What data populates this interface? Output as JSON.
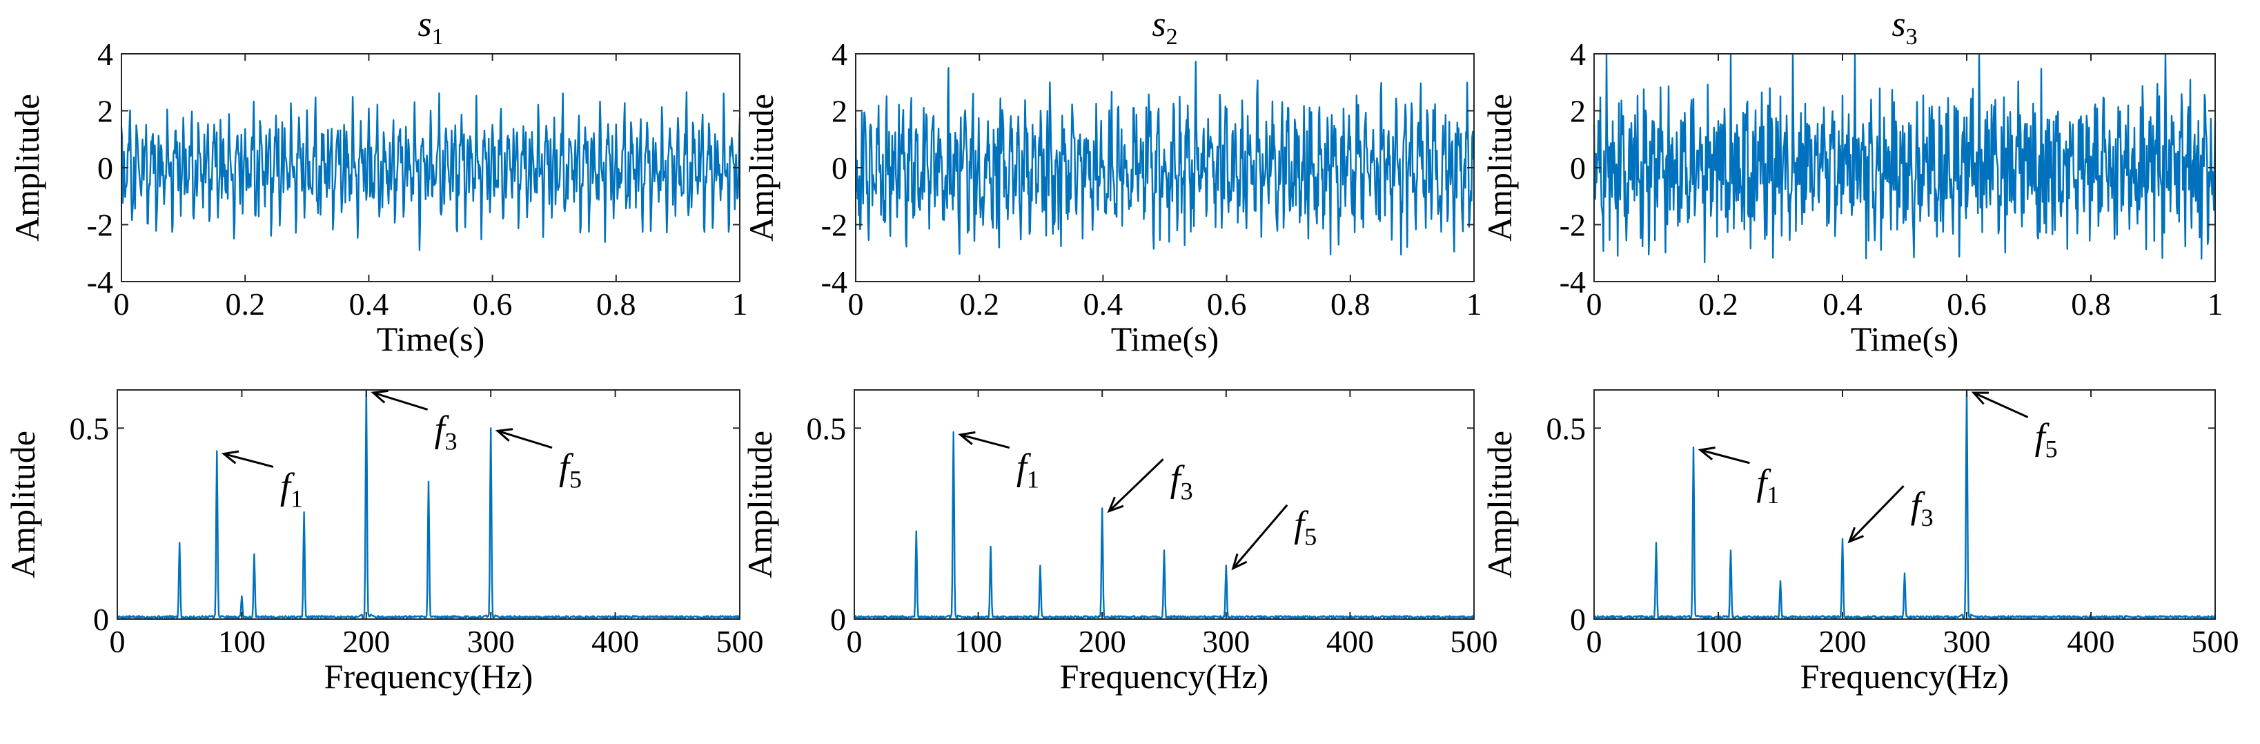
{
  "chart_data": [
    {
      "type": "line",
      "id": "s1-time",
      "title": "s",
      "title_sub": "1",
      "xlabel": "Time(s)",
      "ylabel": "Amplitude",
      "xlim": [
        0,
        1
      ],
      "ylim": [
        -4,
        4
      ],
      "xticks": [
        0,
        0.2,
        0.4,
        0.6,
        0.8,
        1
      ],
      "xtick_labels": [
        "0",
        "0.2",
        "0.4",
        "0.6",
        "0.8",
        "1"
      ],
      "yticks": [
        -4,
        -2,
        0,
        2,
        4
      ],
      "ytick_labels": [
        "-4",
        "-2",
        "0",
        "2",
        "4"
      ],
      "series": [
        {
          "name": "s1",
          "color": "#0072BD",
          "signal": {
            "seed": 11,
            "components": [
              [
                80,
                0.9
              ],
              [
                150,
                0.55
              ],
              [
                200,
                0.6
              ],
              [
                300,
                0.5
              ],
              [
                50,
                0.25
              ],
              [
                110,
                0.2
              ]
            ],
            "noise": 0.04,
            "samples": 1000
          }
        }
      ]
    },
    {
      "type": "line",
      "id": "s2-time",
      "title": "s",
      "title_sub": "2",
      "xlabel": "Time(s)",
      "ylabel": "Amplitude",
      "xlim": [
        0,
        1
      ],
      "ylim": [
        -4,
        4
      ],
      "xticks": [
        0,
        0.2,
        0.4,
        0.6,
        0.8,
        1
      ],
      "xtick_labels": [
        "0",
        "0.2",
        "0.4",
        "0.6",
        "0.8",
        "1"
      ],
      "yticks": [
        -4,
        -2,
        0,
        2,
        4
      ],
      "ytick_labels": [
        "-4",
        "-2",
        "0",
        "2",
        "4"
      ],
      "series": [
        {
          "name": "s2",
          "color": "#0072BD",
          "signal": {
            "seed": 23,
            "components": [
              [
                80,
                1.0
              ],
              [
                200,
                0.6
              ],
              [
                50,
                0.45
              ],
              [
                110,
                0.4
              ],
              [
                150,
                0.3
              ],
              [
                250,
                0.35
              ],
              [
                300,
                0.3
              ]
            ],
            "noise": 0.12,
            "samples": 1000
          }
        }
      ]
    },
    {
      "type": "line",
      "id": "s3-time",
      "title": "s",
      "title_sub": "3",
      "xlabel": "Time(s)",
      "ylabel": "Amplitude",
      "xlim": [
        0,
        1
      ],
      "ylim": [
        -4,
        4
      ],
      "xticks": [
        0,
        0.2,
        0.4,
        0.6,
        0.8,
        1
      ],
      "xtick_labels": [
        "0",
        "0.2",
        "0.4",
        "0.6",
        "0.8",
        "1"
      ],
      "yticks": [
        -4,
        -2,
        0,
        2,
        4
      ],
      "ytick_labels": [
        "-4",
        "-2",
        "0",
        "2",
        "4"
      ],
      "series": [
        {
          "name": "s3",
          "color": "#0072BD",
          "signal": {
            "seed": 37,
            "components": [
              [
                300,
                1.1
              ],
              [
                80,
                0.9
              ],
              [
                200,
                0.45
              ],
              [
                50,
                0.4
              ],
              [
                110,
                0.35
              ],
              [
                150,
                0.2
              ],
              [
                250,
                0.25
              ]
            ],
            "noise": 0.12,
            "samples": 1000
          }
        }
      ]
    },
    {
      "type": "line",
      "id": "s1-spectrum",
      "xlabel": "Frequency(Hz)",
      "ylabel": "Amplitude",
      "xlim": [
        0,
        500
      ],
      "ylim": [
        0,
        0.6
      ],
      "xticks": [
        0,
        100,
        200,
        300,
        400,
        500
      ],
      "xtick_labels": [
        "0",
        "100",
        "200",
        "300",
        "400",
        "500"
      ],
      "yticks": [
        0,
        0.5
      ],
      "ytick_labels": [
        "0",
        "0.5"
      ],
      "series": [
        {
          "name": "spectrum s1",
          "color": "#0072BD",
          "spectrum": {
            "peaks": [
              [
                50,
                0.2
              ],
              [
                80,
                0.44
              ],
              [
                100,
                0.06
              ],
              [
                110,
                0.17
              ],
              [
                150,
                0.28
              ],
              [
                200,
                0.6
              ],
              [
                250,
                0.36
              ],
              [
                300,
                0.5
              ]
            ],
            "noise": 0.006,
            "seed": 5
          }
        }
      ],
      "annotations": [
        {
          "label": "f",
          "sub": "1",
          "x": 80,
          "y": 0.44,
          "text_x": 133,
          "text_y": 0.33
        },
        {
          "label": "f",
          "sub": "3",
          "x": 200,
          "y": 0.6,
          "text_x": 257,
          "text_y": 0.48
        },
        {
          "label": "f",
          "sub": "5",
          "x": 300,
          "y": 0.5,
          "text_x": 357,
          "text_y": 0.38
        }
      ]
    },
    {
      "type": "line",
      "id": "s2-spectrum",
      "xlabel": "Frequency(Hz)",
      "ylabel": "Amplitude",
      "xlim": [
        0,
        500
      ],
      "ylim": [
        0,
        0.6
      ],
      "xticks": [
        0,
        100,
        200,
        300,
        400,
        500
      ],
      "xtick_labels": [
        "0",
        "100",
        "200",
        "300",
        "400",
        "500"
      ],
      "yticks": [
        0,
        0.5
      ],
      "ytick_labels": [
        "0",
        "0.5"
      ],
      "series": [
        {
          "name": "spectrum s2",
          "color": "#0072BD",
          "spectrum": {
            "peaks": [
              [
                50,
                0.23
              ],
              [
                80,
                0.49
              ],
              [
                110,
                0.19
              ],
              [
                150,
                0.14
              ],
              [
                200,
                0.29
              ],
              [
                250,
                0.18
              ],
              [
                300,
                0.14
              ]
            ],
            "noise": 0.006,
            "seed": 9
          }
        }
      ],
      "annotations": [
        {
          "label": "f",
          "sub": "1",
          "x": 80,
          "y": 0.49,
          "text_x": 133,
          "text_y": 0.38
        },
        {
          "label": "f",
          "sub": "3",
          "x": 200,
          "y": 0.29,
          "text_x": 257,
          "text_y": 0.35
        },
        {
          "label": "f",
          "sub": "5",
          "x": 300,
          "y": 0.14,
          "text_x": 357,
          "text_y": 0.23
        }
      ]
    },
    {
      "type": "line",
      "id": "s3-spectrum",
      "xlabel": "Frequency(Hz)",
      "ylabel": "Amplitude",
      "xlim": [
        0,
        500
      ],
      "ylim": [
        0,
        0.6
      ],
      "xticks": [
        0,
        100,
        200,
        300,
        400,
        500
      ],
      "xtick_labels": [
        "0",
        "100",
        "200",
        "300",
        "400",
        "500"
      ],
      "yticks": [
        0,
        0.5
      ],
      "ytick_labels": [
        "0",
        "0.5"
      ],
      "series": [
        {
          "name": "spectrum s3",
          "color": "#0072BD",
          "spectrum": {
            "peaks": [
              [
                50,
                0.2
              ],
              [
                80,
                0.45
              ],
              [
                110,
                0.18
              ],
              [
                150,
                0.1
              ],
              [
                200,
                0.21
              ],
              [
                250,
                0.12
              ],
              [
                300,
                0.6
              ]
            ],
            "noise": 0.006,
            "seed": 13
          }
        }
      ],
      "annotations": [
        {
          "label": "f",
          "sub": "1",
          "x": 80,
          "y": 0.45,
          "text_x": 133,
          "text_y": 0.34
        },
        {
          "label": "f",
          "sub": "3",
          "x": 200,
          "y": 0.21,
          "text_x": 257,
          "text_y": 0.28
        },
        {
          "label": "f",
          "sub": "5",
          "x": 300,
          "y": 0.6,
          "text_x": 357,
          "text_y": 0.46
        }
      ]
    }
  ]
}
